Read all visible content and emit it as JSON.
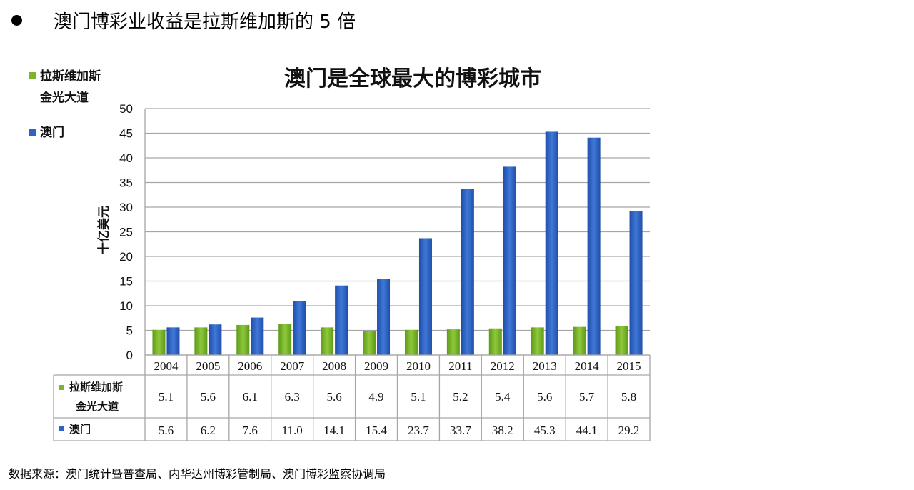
{
  "heading": "澳门博彩业收益是拉斯维加斯的 5 倍",
  "source": "数据来源：澳门统计暨普查局、内华达州博彩管制局、澳门博彩监察协调局",
  "colors": {
    "green": "#7cb52a",
    "blue": "#2e62c4",
    "grid": "#a6a6a6"
  },
  "legend": {
    "las_vegas_line1": "拉斯维加斯",
    "las_vegas_line2": "金光大道",
    "macau": "澳门"
  },
  "chart_data": {
    "type": "bar",
    "title": "澳门是全球最大的博彩城市",
    "ylabel": "十亿美元",
    "ylim": [
      0,
      50
    ],
    "yticks": [
      0,
      5,
      10,
      15,
      20,
      25,
      30,
      35,
      40,
      45,
      50
    ],
    "grid": true,
    "legend_position": "top-left",
    "categories": [
      "2004",
      "2005",
      "2006",
      "2007",
      "2008",
      "2009",
      "2010",
      "2011",
      "2012",
      "2013",
      "2014",
      "2015"
    ],
    "series": [
      {
        "name": "拉斯维加斯 金光大道",
        "color": "#7cb52a",
        "values": [
          5.1,
          5.6,
          6.1,
          6.3,
          5.6,
          4.9,
          5.1,
          5.2,
          5.4,
          5.6,
          5.7,
          5.8
        ]
      },
      {
        "name": "澳门",
        "color": "#2e62c4",
        "values": [
          5.6,
          6.2,
          7.6,
          11.0,
          14.1,
          15.4,
          23.7,
          33.7,
          38.2,
          45.3,
          44.1,
          29.2
        ]
      }
    ],
    "table_values": {
      "las_vegas": [
        "5.1",
        "5.6",
        "6.1",
        "6.3",
        "5.6",
        "4.9",
        "5.1",
        "5.2",
        "5.4",
        "5.6",
        "5.7",
        "5.8"
      ],
      "macau": [
        "5.6",
        "6.2",
        "7.6",
        "11.0",
        "14.1",
        "15.4",
        "23.7",
        "33.7",
        "38.2",
        "45.3",
        "44.1",
        "29.2"
      ]
    }
  }
}
